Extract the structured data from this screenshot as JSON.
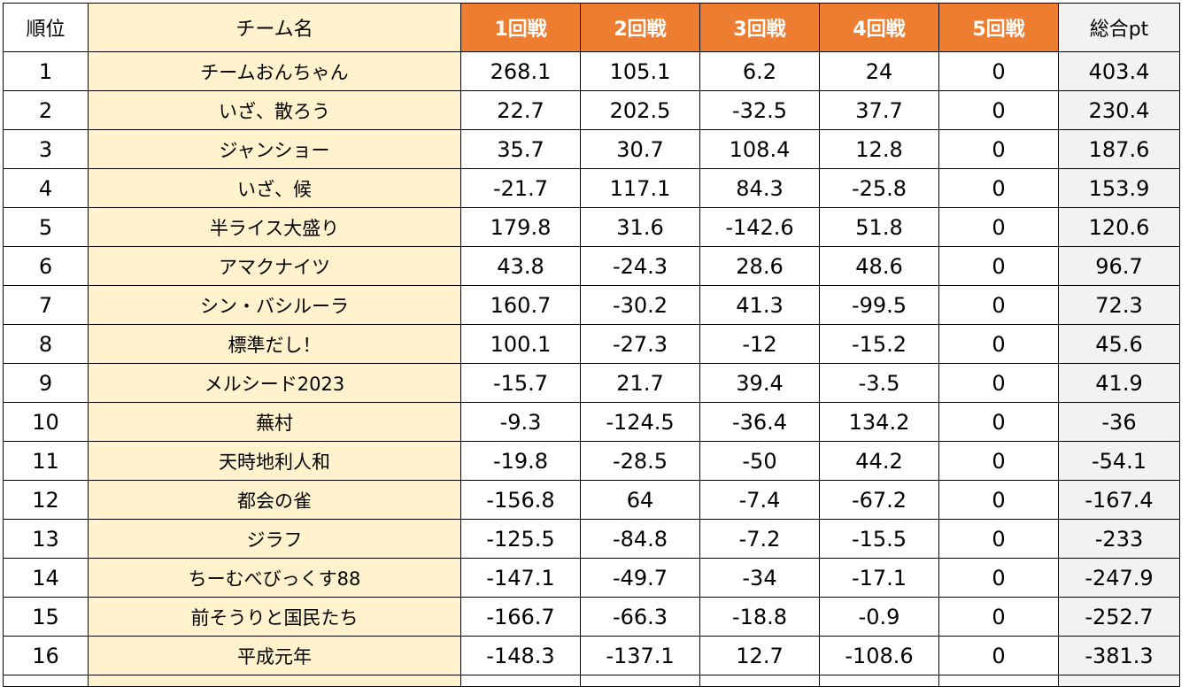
{
  "colors": {
    "header_round_bg": "#ed7d31",
    "team_col_bg": "#fff2cc",
    "total_col_bg": "#f2f2f2",
    "grid": "#000000"
  },
  "headers": {
    "rank": "順位",
    "team": "チーム名",
    "rounds": [
      "1回戦",
      "2回戦",
      "3回戦",
      "4回戦",
      "5回戦"
    ],
    "total": "総合pt"
  },
  "rows": [
    {
      "rank": "1",
      "team": "チームおんちゃん",
      "r": [
        "268.1",
        "105.1",
        "6.2",
        "24",
        "0"
      ],
      "total": "403.4"
    },
    {
      "rank": "2",
      "team": "いざ、散ろう",
      "r": [
        "22.7",
        "202.5",
        "-32.5",
        "37.7",
        "0"
      ],
      "total": "230.4"
    },
    {
      "rank": "3",
      "team": "ジャンショー",
      "r": [
        "35.7",
        "30.7",
        "108.4",
        "12.8",
        "0"
      ],
      "total": "187.6"
    },
    {
      "rank": "4",
      "team": "いざ、候",
      "r": [
        "-21.7",
        "117.1",
        "84.3",
        "-25.8",
        "0"
      ],
      "total": "153.9"
    },
    {
      "rank": "5",
      "team": "半ライス大盛り",
      "r": [
        "179.8",
        "31.6",
        "-142.6",
        "51.8",
        "0"
      ],
      "total": "120.6"
    },
    {
      "rank": "6",
      "team": "アマクナイツ",
      "r": [
        "43.8",
        "-24.3",
        "28.6",
        "48.6",
        "0"
      ],
      "total": "96.7"
    },
    {
      "rank": "7",
      "team": "シン・バシルーラ",
      "r": [
        "160.7",
        "-30.2",
        "41.3",
        "-99.5",
        "0"
      ],
      "total": "72.3"
    },
    {
      "rank": "8",
      "team": "標準だし！",
      "r": [
        "100.1",
        "-27.3",
        "-12",
        "-15.2",
        "0"
      ],
      "total": "45.6"
    },
    {
      "rank": "9",
      "team": "メルシード2023",
      "r": [
        "-15.7",
        "21.7",
        "39.4",
        "-3.5",
        "0"
      ],
      "total": "41.9"
    },
    {
      "rank": "10",
      "team": "蕪村",
      "r": [
        "-9.3",
        "-124.5",
        "-36.4",
        "134.2",
        "0"
      ],
      "total": "-36"
    },
    {
      "rank": "11",
      "team": "天時地利人和",
      "r": [
        "-19.8",
        "-28.5",
        "-50",
        "44.2",
        "0"
      ],
      "total": "-54.1"
    },
    {
      "rank": "12",
      "team": "都会の雀",
      "r": [
        "-156.8",
        "64",
        "-7.4",
        "-67.2",
        "0"
      ],
      "total": "-167.4"
    },
    {
      "rank": "13",
      "team": "ジラフ",
      "r": [
        "-125.5",
        "-84.8",
        "-7.2",
        "-15.5",
        "0"
      ],
      "total": "-233"
    },
    {
      "rank": "14",
      "team": "ちーむべびっくす88",
      "r": [
        "-147.1",
        "-49.7",
        "-34",
        "-17.1",
        "0"
      ],
      "total": "-247.9"
    },
    {
      "rank": "15",
      "team": "前そうりと国民たち",
      "r": [
        "-166.7",
        "-66.3",
        "-18.8",
        "-0.9",
        "0"
      ],
      "total": "-252.7"
    },
    {
      "rank": "16",
      "team": "平成元年",
      "r": [
        "-148.3",
        "-137.1",
        "12.7",
        "-108.6",
        "0"
      ],
      "total": "-381.3"
    }
  ]
}
